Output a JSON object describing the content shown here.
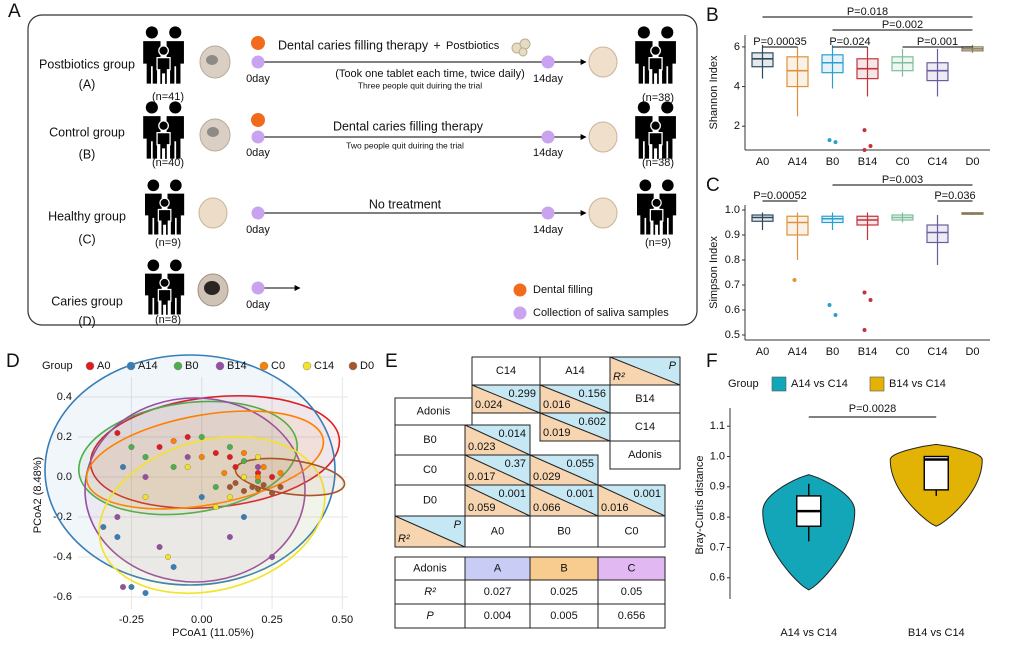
{
  "panel_labels": [
    "A",
    "B",
    "C",
    "D",
    "E",
    "F"
  ],
  "study_design": {
    "groups": [
      {
        "name": "Postbiotics group",
        "code": "(A)",
        "n_start": "(n=41)",
        "n_end": "(n=38)",
        "therapy": "Dental caries filling therapy",
        "plus": "+",
        "addition": "Postbiotics",
        "dosage": "(Took one tablet each time, twice daily)",
        "dropout": "Three people quit duiring the trial",
        "start": "0day",
        "end": "14day"
      },
      {
        "name": "Control group",
        "code": "(B)",
        "n_start": "(n=40)",
        "n_end": "(n=38)",
        "therapy": "Dental caries filling therapy",
        "dropout": "Two people quit duiring the trial",
        "start": "0day",
        "end": "14day"
      },
      {
        "name": "Healthy group",
        "code": "(C)",
        "n_start": "(n=9)",
        "n_end": "(n=9)",
        "therapy": "No treatment",
        "start": "0day",
        "end": "14day"
      },
      {
        "name": "Caries group",
        "code": "(D)",
        "n_start": "(n=8)",
        "start": "0day"
      }
    ],
    "legend": [
      "Dental filling",
      "Collection of saliva samples"
    ]
  },
  "chart_data": [
    {
      "type": "box",
      "y_label": "Shannon Index",
      "categories": [
        "A0",
        "A14",
        "B0",
        "B14",
        "C0",
        "C14",
        "D0"
      ],
      "colors": [
        "#2d4b5f",
        "#e0913a",
        "#2a9fd0",
        "#c0343c",
        "#7dbf9a",
        "#6b5ba0",
        "#8b7a58"
      ],
      "boxes": [
        {
          "min": 4.4,
          "q1": 5.0,
          "median": 5.4,
          "q3": 5.7,
          "max": 6.1
        },
        {
          "min": 2.5,
          "q1": 4.0,
          "median": 4.8,
          "q3": 5.5,
          "max": 6.0
        },
        {
          "min": 3.9,
          "q1": 4.7,
          "median": 5.2,
          "q3": 5.6,
          "max": 6.1,
          "outliers": [
            1.3,
            1.2
          ]
        },
        {
          "min": 3.5,
          "q1": 4.4,
          "median": 4.9,
          "q3": 5.4,
          "max": 6.0,
          "outliers": [
            1.8,
            1.0,
            0.8
          ]
        },
        {
          "min": 4.5,
          "q1": 4.8,
          "median": 5.2,
          "q3": 5.5,
          "max": 5.9
        },
        {
          "min": 3.5,
          "q1": 4.3,
          "median": 4.8,
          "q3": 5.2,
          "max": 5.9
        },
        {
          "min": 5.7,
          "q1": 5.8,
          "median": 5.9,
          "q3": 6.0,
          "max": 6.1
        }
      ],
      "ylim": [
        0.8,
        6.6
      ],
      "yticks": [
        2,
        4,
        6
      ],
      "comparisons": [
        {
          "from": "A0",
          "to": "D0",
          "label": "P=0.018"
        },
        {
          "from": "B0",
          "to": "D0",
          "label": "P=0.002"
        },
        {
          "from": "A0",
          "to": "A14",
          "label": "P=0.00035"
        },
        {
          "from": "B0",
          "to": "B14",
          "label": "P=0.024"
        },
        {
          "from": "C0",
          "to": "D0",
          "label": "P=0.001"
        }
      ]
    },
    {
      "type": "box",
      "y_label": "Simpson Index",
      "categories": [
        "A0",
        "A14",
        "B0",
        "B14",
        "C0",
        "C14",
        "D0"
      ],
      "colors": [
        "#2d4b5f",
        "#e0913a",
        "#2a9fd0",
        "#c0343c",
        "#7dbf9a",
        "#6b5ba0",
        "#8b7a58"
      ],
      "boxes": [
        {
          "min": 0.92,
          "q1": 0.955,
          "median": 0.97,
          "q3": 0.98,
          "max": 0.99
        },
        {
          "min": 0.8,
          "q1": 0.9,
          "median": 0.95,
          "q3": 0.975,
          "max": 0.99,
          "outliers": [
            0.72
          ]
        },
        {
          "min": 0.92,
          "q1": 0.95,
          "median": 0.965,
          "q3": 0.975,
          "max": 0.99,
          "outliers": [
            0.62,
            0.58
          ]
        },
        {
          "min": 0.88,
          "q1": 0.94,
          "median": 0.96,
          "q3": 0.975,
          "max": 0.99,
          "outliers": [
            0.67,
            0.64,
            0.52
          ]
        },
        {
          "min": 0.95,
          "q1": 0.96,
          "median": 0.97,
          "q3": 0.98,
          "max": 0.99
        },
        {
          "min": 0.78,
          "q1": 0.87,
          "median": 0.91,
          "q3": 0.94,
          "max": 0.98
        },
        {
          "min": 0.98,
          "q1": 0.983,
          "median": 0.986,
          "q3": 0.989,
          "max": 0.99
        }
      ],
      "ylim": [
        0.48,
        1.02
      ],
      "yticks": [
        {
          "value": 1.0,
          "label": "1.0"
        },
        0.9,
        0.8,
        0.7,
        0.6,
        0.5
      ],
      "comparisons": [
        {
          "from": "B0",
          "to": "D0",
          "label": "P=0.003"
        },
        {
          "from": "A0",
          "to": "A14",
          "label": "P=0.00052"
        },
        {
          "from": "C14",
          "to": "D0",
          "label": "P=0.036"
        }
      ]
    },
    {
      "type": "scatter",
      "legend_title": "Group",
      "x_label": "PCoA1 (11.05%)",
      "y_label": "PCoA2 (8.48%)",
      "xlim": [
        -0.44,
        0.52
      ],
      "ylim": [
        -0.66,
        0.5
      ],
      "xticks": [
        -0.25,
        {
          "value": 0,
          "label": "0.00"
        },
        0.25,
        {
          "value": 0.5,
          "label": "0.50"
        }
      ],
      "yticks": [
        0.4,
        0.2,
        {
          "value": 0,
          "label": "0.0"
        },
        -0.2,
        -0.4,
        -0.6
      ],
      "grid": true,
      "series": [
        {
          "name": "A0",
          "color": "#e41a1c",
          "x": [
            -0.3,
            -0.15,
            0.05,
            0.12,
            0.2,
            0.25,
            0.1,
            -0.05
          ],
          "y": [
            0.22,
            0.15,
            0.12,
            0.05,
            0.02,
            0.0,
            0.1,
            0.2
          ]
        },
        {
          "name": "A14",
          "color": "#377eb8",
          "x": [
            -0.35,
            -0.25,
            -0.2,
            -0.3,
            -0.1,
            0.0,
            0.15,
            -0.28
          ],
          "y": [
            -0.25,
            -0.55,
            -0.58,
            -0.3,
            -0.45,
            -0.1,
            -0.2,
            0.05
          ]
        },
        {
          "name": "B0",
          "color": "#4daf4a",
          "x": [
            -0.2,
            -0.1,
            0.0,
            0.05,
            0.15,
            -0.25,
            0.1,
            0.2
          ],
          "y": [
            0.1,
            0.05,
            0.2,
            -0.05,
            0.08,
            0.15,
            0.15,
            -0.02
          ]
        },
        {
          "name": "B14",
          "color": "#984ea3",
          "x": [
            -0.28,
            -0.3,
            -0.15,
            0.1,
            0.25,
            -0.05,
            0.2,
            -0.2
          ],
          "y": [
            -0.55,
            -0.2,
            -0.35,
            -0.3,
            -0.4,
            0.1,
            0.05,
            0.0
          ]
        },
        {
          "name": "C0",
          "color": "#ff7f00",
          "x": [
            0.08,
            0.2,
            0.22,
            0.0,
            -0.1,
            0.15,
            0.28
          ],
          "y": [
            0.02,
            0.0,
            0.05,
            0.1,
            0.18,
            0.12,
            0.02
          ]
        },
        {
          "name": "C14",
          "color": "#f2e22a",
          "x": [
            -0.12,
            0.05,
            -0.05,
            0.15,
            -0.2,
            0.1,
            0.2
          ],
          "y": [
            -0.4,
            -0.15,
            0.05,
            0.0,
            -0.1,
            -0.1,
            0.1
          ]
        },
        {
          "name": "D0",
          "color": "#a65628",
          "x": [
            0.1,
            0.15,
            0.18,
            0.22,
            0.25,
            0.12,
            0.2,
            0.28
          ],
          "y": [
            -0.05,
            -0.07,
            -0.05,
            -0.04,
            -0.08,
            -0.03,
            -0.06,
            -0.05
          ]
        }
      ]
    },
    {
      "type": "violin",
      "legend_title": "Group",
      "y_label": "Bray-Curtis distance",
      "categories": [
        "A14 vs C14",
        "B14 vs C14"
      ],
      "series": [
        {
          "name": "A14 vs C14",
          "color": "#13a5b8",
          "violin_low": 0.56,
          "violin_high": 0.94,
          "whisker_low": 0.72,
          "q1": 0.77,
          "median": 0.82,
          "q3": 0.87,
          "whisker_high": 0.91
        },
        {
          "name": "B14 vs C14",
          "color": "#e2b304",
          "violin_low": 0.77,
          "violin_high": 1.04,
          "whisker_low": 0.87,
          "q1": 0.89,
          "median": 0.99,
          "q3": 1.0,
          "whisker_high": 1.0
        }
      ],
      "ylim": [
        0.53,
        1.16
      ],
      "yticks": [
        0.6,
        0.7,
        0.8,
        0.9,
        {
          "value": 1.0,
          "label": "1.0"
        },
        1.1
      ],
      "comparisons": [
        {
          "from": "A14 vs C14",
          "to": "B14 vs C14",
          "label": "P=0.0028"
        }
      ]
    }
  ],
  "adonis": {
    "pairwise_cells": [
      {
        "text": "C14"
      },
      {
        "text": "A14"
      },
      {
        "r2": "R²",
        "p": "P"
      },
      {
        "p": 0.299,
        "r2": 0.024
      },
      {
        "p": 0.156,
        "r2": 0.016
      },
      {
        "text": "B14"
      },
      {
        "text": "Adonis"
      },
      {
        "p": 0.602,
        "r2": 0.019
      },
      {
        "text": "C14"
      },
      {
        "text": "Adonis"
      },
      {
        "text": "B0"
      },
      {
        "p": 0.014,
        "r2": 0.023
      },
      {
        "text": "C0"
      },
      {
        "p": 0.37,
        "r2": 0.017
      },
      {
        "p": 0.055,
        "r2": 0.029
      },
      {
        "text": "D0"
      },
      {
        "p": 0.001,
        "r2": 0.059
      },
      {
        "p": 0.001,
        "r2": 0.066
      },
      {
        "p": 0.001,
        "r2": 0.016
      },
      {
        "r2": "R²",
        "p": "P"
      },
      {
        "text": "A0"
      },
      {
        "text": "B0"
      },
      {
        "text": "C0"
      }
    ],
    "summary": {
      "header": [
        "Adonis",
        "A",
        "B",
        "C"
      ],
      "header_colors": [
        "#ffffff",
        "#c9cdf6",
        "#f8cb8f",
        "#e2b8f2"
      ],
      "rows": [
        [
          "R²",
          0.027,
          0.025,
          0.05
        ],
        [
          "P",
          0.004,
          0.005,
          0.656
        ]
      ]
    }
  }
}
